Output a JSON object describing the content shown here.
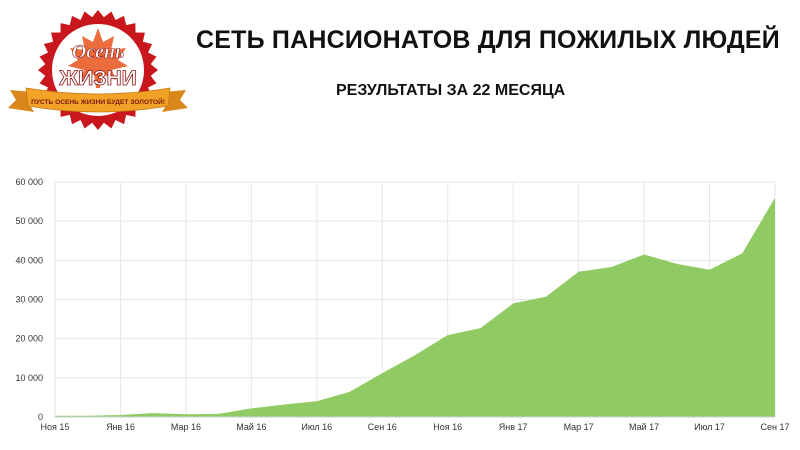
{
  "logo": {
    "word1": "Осень",
    "word2": "ЖИЗНИ",
    "tagline": "ПУСТЬ ОСЕНЬ ЖИЗНИ БУДЕТ ЗОЛОТОЙ!",
    "colors": {
      "seal": "#c8171d",
      "inner": "#ffffff",
      "ribbon": "#f2a227",
      "leaf": "#e8541c"
    },
    "icon": "maple-leaf-icon"
  },
  "header": {
    "title": "СЕТЬ ПАНСИОНАТОВ ДЛЯ ПОЖИЛЫХ ЛЮДЕЙ",
    "subtitle": "РЕЗУЛЬТАТЫ ЗА 22 МЕСЯЦА"
  },
  "chart_data": {
    "type": "area",
    "title": "",
    "xlabel": "",
    "ylabel": "",
    "x": [
      "Ноя 15",
      "Дек 15",
      "Янв 16",
      "Фев 16",
      "Мар 16",
      "Апр 16",
      "Май 16",
      "Июн 16",
      "Июл 16",
      "Авг 16",
      "Сен 16",
      "Окт 16",
      "Ноя 16",
      "Дек 16",
      "Янв 17",
      "Фев 17",
      "Мар 17",
      "Апр 17",
      "Май 17",
      "Июн 17",
      "Июл 17",
      "Авг 17",
      "Сен 17"
    ],
    "x_tick_labels": [
      "Ноя 15",
      "Янв 16",
      "Мар 16",
      "Май 16",
      "Июл 16",
      "Сен 16",
      "Ноя 16",
      "Янв 17",
      "Мар 17",
      "Май 17",
      "Июл 17",
      "Сен 17"
    ],
    "series": [
      {
        "values": [
          300,
          300,
          500,
          1000,
          700,
          800,
          2200,
          3200,
          4000,
          6400,
          11200,
          15800,
          20900,
          22700,
          29000,
          30700,
          37100,
          38300,
          41500,
          39100,
          37600,
          41800,
          56000
        ]
      }
    ],
    "ylim": [
      0,
      60000
    ],
    "y_ticks": [
      0,
      10000,
      20000,
      30000,
      40000,
      50000,
      60000
    ],
    "y_tick_labels": [
      "0",
      "10 000",
      "20 000",
      "30 000",
      "40 000",
      "50 000",
      "60 000"
    ],
    "grid": true,
    "colors": {
      "area": "#8fcb62",
      "grid": "#e6e6e6"
    }
  }
}
